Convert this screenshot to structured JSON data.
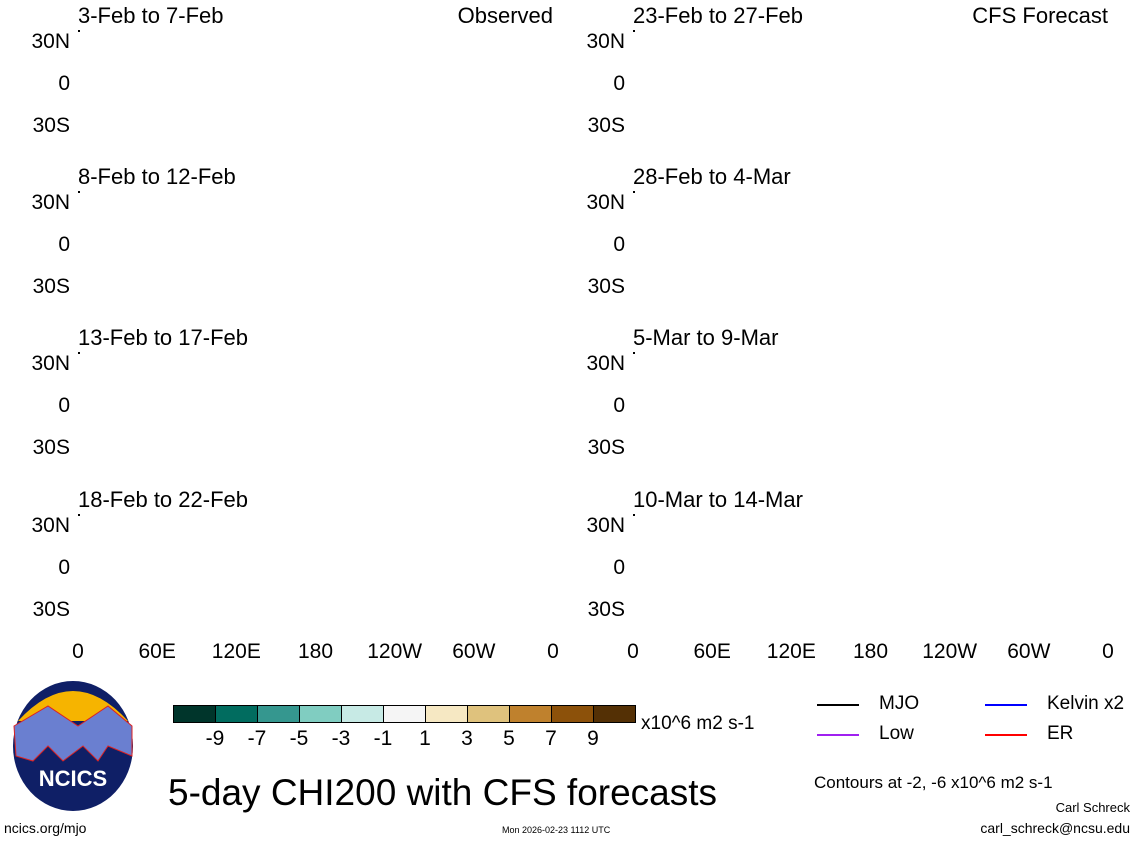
{
  "chart_data": {
    "type": "heatmap",
    "title": "5-day CHI200 with CFS forecasts",
    "variable": "CHI200 anomaly",
    "units": "x10^6 m2 s-1",
    "panels": [
      {
        "title": "3-Feb to 7-Feb",
        "tag": "Observed"
      },
      {
        "title": "23-Feb to 27-Feb",
        "tag": "CFS Forecast"
      },
      {
        "title": "8-Feb to 12-Feb",
        "tag": ""
      },
      {
        "title": "28-Feb to 4-Mar",
        "tag": ""
      },
      {
        "title": "13-Feb to 17-Feb",
        "tag": ""
      },
      {
        "title": "5-Mar to 9-Mar",
        "tag": ""
      },
      {
        "title": "18-Feb to 22-Feb",
        "tag": ""
      },
      {
        "title": "10-Mar to 14-Mar",
        "tag": ""
      }
    ],
    "y_ticks": [
      "30N",
      "0",
      "30S"
    ],
    "x_ticks": [
      "0",
      "60E",
      "120E",
      "180",
      "120W",
      "60W",
      "0"
    ],
    "colorbar": {
      "labels": [
        "-9",
        "-7",
        "-5",
        "-3",
        "-1",
        "1",
        "3",
        "5",
        "7",
        "9"
      ],
      "colors": [
        "#00352b",
        "#016c5f",
        "#35978f",
        "#80cdc1",
        "#c7eae5",
        "#f5f5f5",
        "#f6e8c3",
        "#dfc27d",
        "#bf812d",
        "#8c510a",
        "#543005"
      ],
      "units": "x10^6 m2 s-1"
    },
    "legend": [
      {
        "label": "MJO",
        "color": "#000000"
      },
      {
        "label": "Kelvin x2",
        "color": "#0000ff"
      },
      {
        "label": "Low",
        "color": "#a020f0"
      },
      {
        "label": "ER",
        "color": "#ff0000"
      }
    ],
    "contour_note": "Contours at -2, -6 x10^6 m2 s-1"
  },
  "footer": {
    "logo_text": "NCICS",
    "url": "ncics.org/mjo",
    "timestamp": "Mon 2026-02-23 1112 UTC",
    "author": "Carl Schreck",
    "email": "carl_schreck@ncsu.edu"
  }
}
